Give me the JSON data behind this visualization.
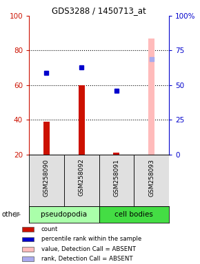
{
  "title": "GDS3288 / 1450713_at",
  "samples": [
    "GSM258090",
    "GSM258092",
    "GSM258091",
    "GSM258093"
  ],
  "group_labels": [
    "pseudopodia",
    "cell bodies"
  ],
  "group_colors": [
    "#aaffaa",
    "#44dd44"
  ],
  "bar_values": [
    39,
    60,
    21,
    87
  ],
  "bar_colors": [
    "#cc1100",
    "#cc1100",
    "#cc1100",
    "#ffbbbb"
  ],
  "dot_values": [
    59,
    63,
    46,
    69
  ],
  "dot_colors": [
    "#0000cc",
    "#0000cc",
    "#0000cc",
    "#aaaaee"
  ],
  "ylim_left": [
    20,
    100
  ],
  "ylim_right": [
    0,
    100
  ],
  "yticks_left": [
    20,
    40,
    60,
    80,
    100
  ],
  "ytick_labels_left": [
    "20",
    "40",
    "60",
    "80",
    "100"
  ],
  "yticks_right": [
    0,
    25,
    50,
    75,
    100
  ],
  "ytick_labels_right": [
    "0",
    "25",
    "50",
    "75",
    "100%"
  ],
  "left_axis_color": "#cc1100",
  "right_axis_color": "#0000cc",
  "legend_items": [
    {
      "color": "#cc1100",
      "label": "count"
    },
    {
      "color": "#0000cc",
      "label": "percentile rank within the sample"
    },
    {
      "color": "#ffbbbb",
      "label": "value, Detection Call = ABSENT"
    },
    {
      "color": "#aaaaee",
      "label": "rank, Detection Call = ABSENT"
    }
  ],
  "other_label": "other",
  "sample_bg": "#e0e0e0",
  "plot_bg": "#ffffff",
  "bar_width": 0.18
}
